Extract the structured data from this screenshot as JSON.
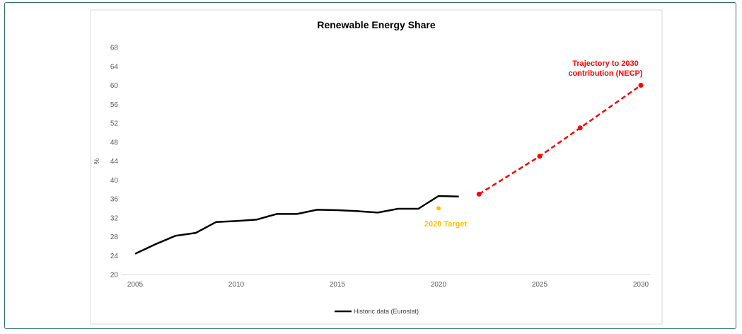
{
  "chart_data": {
    "type": "line",
    "title": "Renewable Energy Share",
    "ylabel": "%",
    "xlabel": "",
    "xlim": [
      2005,
      2030
    ],
    "ylim": [
      20,
      68
    ],
    "x_ticks": [
      "2005",
      "2010",
      "2015",
      "2020",
      "2025",
      "2030"
    ],
    "y_ticks": [
      "20",
      "24",
      "28",
      "32",
      "36",
      "40",
      "44",
      "48",
      "52",
      "56",
      "60",
      "64",
      "68"
    ],
    "grid": false,
    "legend_position": "bottom",
    "series": [
      {
        "name": "Historic data (Eurostat)",
        "color": "#000000",
        "style": "solid",
        "x": [
          2005,
          2006,
          2007,
          2008,
          2009,
          2010,
          2011,
          2012,
          2013,
          2014,
          2015,
          2016,
          2017,
          2018,
          2019,
          2020,
          2021
        ],
        "y": [
          24.4,
          26.4,
          28.2,
          28.8,
          31.1,
          31.3,
          31.6,
          32.8,
          32.8,
          33.7,
          33.6,
          33.4,
          33.1,
          33.9,
          33.9,
          36.6,
          36.5
        ]
      },
      {
        "name": "",
        "color": "#ff0000",
        "style": "dashed",
        "x": [
          2022,
          2025,
          2027,
          2030
        ],
        "y": [
          37,
          45,
          51,
          60
        ]
      }
    ],
    "points": [
      {
        "x": 2020,
        "y": 34,
        "color": "#ffc000"
      }
    ],
    "annotations": [
      {
        "text_lines": [
          "Trajectory to 2030",
          "contribution (NECP)"
        ],
        "color": "#ff0000"
      },
      {
        "text_lines": [
          "2020 Target"
        ],
        "color": "#ffc000"
      }
    ]
  }
}
